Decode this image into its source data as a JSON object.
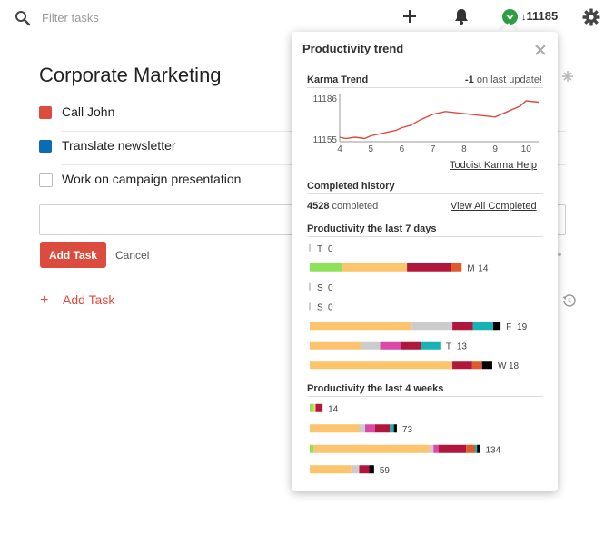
{
  "header": {
    "search_placeholder": "Filter tasks",
    "karma_count": "11185",
    "karma_arrow": "↓",
    "icons": [
      "search-icon",
      "plus-icon",
      "bell-icon",
      "karma-icon",
      "gear-icon"
    ]
  },
  "project": {
    "title": "Corporate Marketing",
    "tasks": [
      {
        "label": "Call John",
        "color": "#db4c3f"
      },
      {
        "label": "Translate newsletter",
        "color": "#0a6cb4"
      },
      {
        "label": "Work on campaign presentation",
        "color": ""
      }
    ],
    "add_task_button": "Add Task",
    "cancel_label": "Cancel",
    "add_task_link": "Add Task",
    "add_task_plus": "+"
  },
  "popup": {
    "title": "Productivity trend",
    "karma_trend_title": "Karma Trend",
    "karma_delta": "-1",
    "karma_delta_suffix": " on last update!",
    "karma_help": "Todoist Karma Help",
    "completed_history_title": "Completed history",
    "completed_count": "4528",
    "completed_suffix": " completed",
    "view_all": "View All Completed",
    "last7_title": "Productivity the last 7 days",
    "last4_title": "Productivity the last 4 weeks"
  },
  "chart_data": [
    {
      "type": "line",
      "title": "Karma Trend",
      "ylim": [
        11155,
        11186
      ],
      "y_ticks": [
        "11186",
        "11155"
      ],
      "x_ticks": [
        "4",
        "5",
        "6",
        "7",
        "8",
        "9",
        "10"
      ],
      "x": [
        4.0,
        4.2,
        4.5,
        4.8,
        5.0,
        5.4,
        5.8,
        6.0,
        6.3,
        6.6,
        7.0,
        7.4,
        7.8,
        8.2,
        8.6,
        9.0,
        9.4,
        9.8,
        10.0,
        10.4
      ],
      "values": [
        11157,
        11156,
        11157,
        11156,
        11158,
        11160,
        11162,
        11164,
        11166,
        11170,
        11174,
        11176,
        11175,
        11174,
        11173,
        11172,
        11176,
        11180,
        11184,
        11183
      ],
      "series_color": "#db4c3f",
      "grid": false
    },
    {
      "type": "bar",
      "orientation": "horizontal-stacked",
      "title": "Productivity the last 7 days",
      "rows": [
        {
          "day": "T",
          "total": "0",
          "segments": []
        },
        {
          "day": "M",
          "total": "14",
          "segments": [
            {
              "v": 3.5,
              "color": "#8ee25a"
            },
            {
              "v": 7,
              "color": "#fcc46d"
            },
            {
              "v": 4.7,
              "color": "#b1163d"
            },
            {
              "v": 1.2,
              "color": "#e05a2b"
            }
          ]
        },
        {
          "day": "S",
          "total": "0",
          "segments": []
        },
        {
          "day": "S",
          "total": "0",
          "segments": []
        },
        {
          "day": "F",
          "total": "19",
          "segments": [
            {
              "v": 11,
              "color": "#fcc46d"
            },
            {
              "v": 4.4,
              "color": "#cccccc"
            },
            {
              "v": 2.2,
              "color": "#b1163d"
            },
            {
              "v": 2.2,
              "color": "#16b3b2"
            },
            {
              "v": 0.8,
              "color": "#000000"
            }
          ]
        },
        {
          "day": "T",
          "total": "13",
          "segments": [
            {
              "v": 5.5,
              "color": "#fcc46d"
            },
            {
              "v": 2.1,
              "color": "#cccccc"
            },
            {
              "v": 2.2,
              "color": "#da48a8"
            },
            {
              "v": 2.2,
              "color": "#b1163d"
            },
            {
              "v": 2.1,
              "color": "#16b3b2"
            }
          ]
        },
        {
          "day": "W",
          "total": "18",
          "segments": [
            {
              "v": 15.4,
              "color": "#fcc46d"
            },
            {
              "v": 2.1,
              "color": "#b1163d"
            },
            {
              "v": 1.1,
              "color": "#e05a2b"
            },
            {
              "v": 1.1,
              "color": "#000000"
            }
          ]
        }
      ]
    },
    {
      "type": "bar",
      "orientation": "horizontal-stacked",
      "title": "Productivity the last 4 weeks",
      "rows": [
        {
          "total": "14",
          "segments": [
            {
              "v": 4,
              "color": "#8ee25a"
            },
            {
              "v": 2,
              "color": "#fcc46d"
            },
            {
              "v": 7,
              "color": "#b1163d"
            }
          ]
        },
        {
          "total": "73",
          "segments": [
            {
              "v": 50,
              "color": "#fcc46d"
            },
            {
              "v": 6,
              "color": "#cccccc"
            },
            {
              "v": 10,
              "color": "#da48a8"
            },
            {
              "v": 15,
              "color": "#b1163d"
            },
            {
              "v": 4,
              "color": "#16b3b2"
            },
            {
              "v": 3,
              "color": "#000000"
            }
          ]
        },
        {
          "total": "134",
          "segments": [
            {
              "v": 4,
              "color": "#8ee25a"
            },
            {
              "v": 117,
              "color": "#fcc46d"
            },
            {
              "v": 4,
              "color": "#cccccc"
            },
            {
              "v": 5,
              "color": "#da48a8"
            },
            {
              "v": 28,
              "color": "#b1163d"
            },
            {
              "v": 9,
              "color": "#e05a2b"
            },
            {
              "v": 2,
              "color": "#16b3b2"
            },
            {
              "v": 3,
              "color": "#000000"
            }
          ]
        },
        {
          "total": "59",
          "segments": [
            {
              "v": 42,
              "color": "#fcc46d"
            },
            {
              "v": 8,
              "color": "#cccccc"
            },
            {
              "v": 10,
              "color": "#b1163d"
            },
            {
              "v": 5,
              "color": "#000000"
            }
          ]
        }
      ]
    }
  ]
}
